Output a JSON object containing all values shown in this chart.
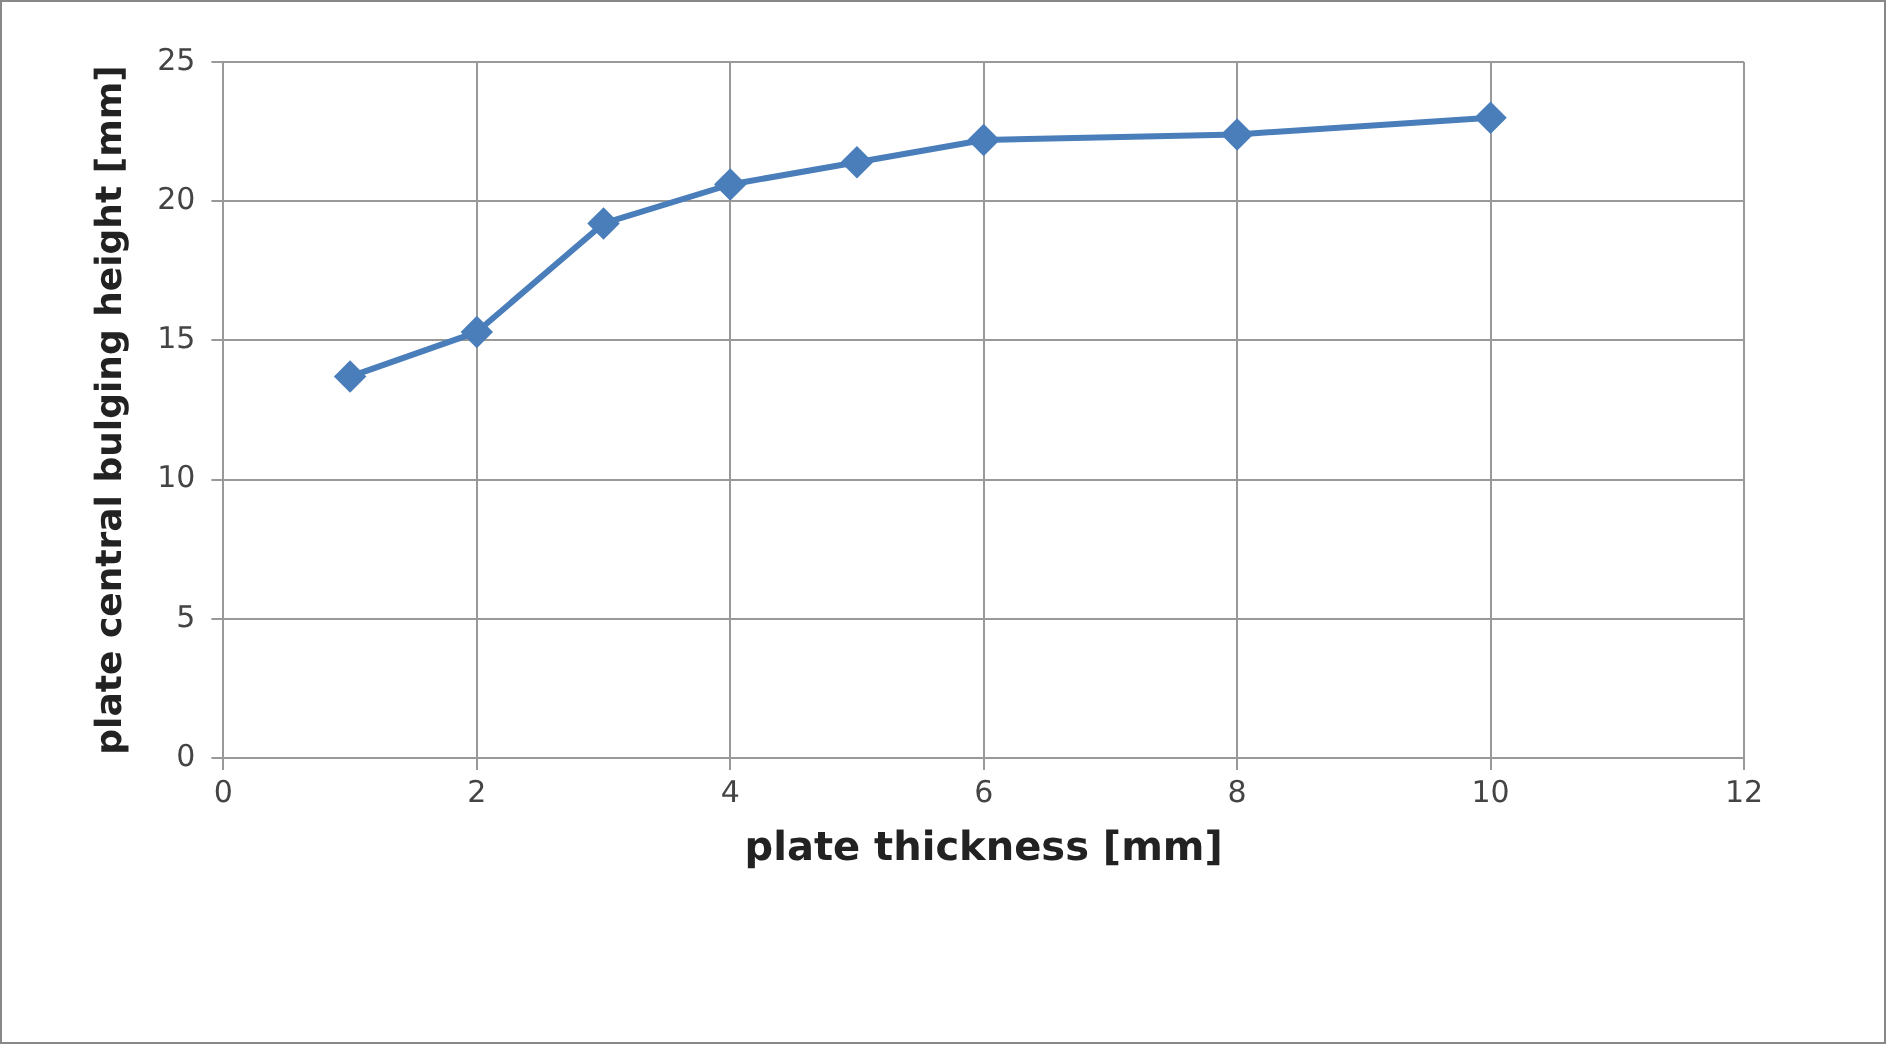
{
  "chart_data": {
    "type": "line",
    "xlabel": "plate thickness [mm]",
    "ylabel": "plate central bulging height [mm]",
    "x": [
      1,
      2,
      3,
      4,
      5,
      6,
      8,
      10
    ],
    "series": [
      {
        "color": "#4a7ebb",
        "values": [
          13.7,
          15.3,
          19.2,
          20.6,
          21.4,
          22.2,
          22.4,
          23.0
        ]
      }
    ],
    "xlim": [
      0,
      12
    ],
    "xticks": [
      0,
      2,
      4,
      6,
      8,
      10,
      12
    ],
    "ylim": [
      0,
      25
    ],
    "yticks": [
      0,
      5,
      10,
      15,
      20,
      25
    ],
    "grid": true,
    "legend": false,
    "marker": "diamond",
    "line_style": "solid"
  }
}
